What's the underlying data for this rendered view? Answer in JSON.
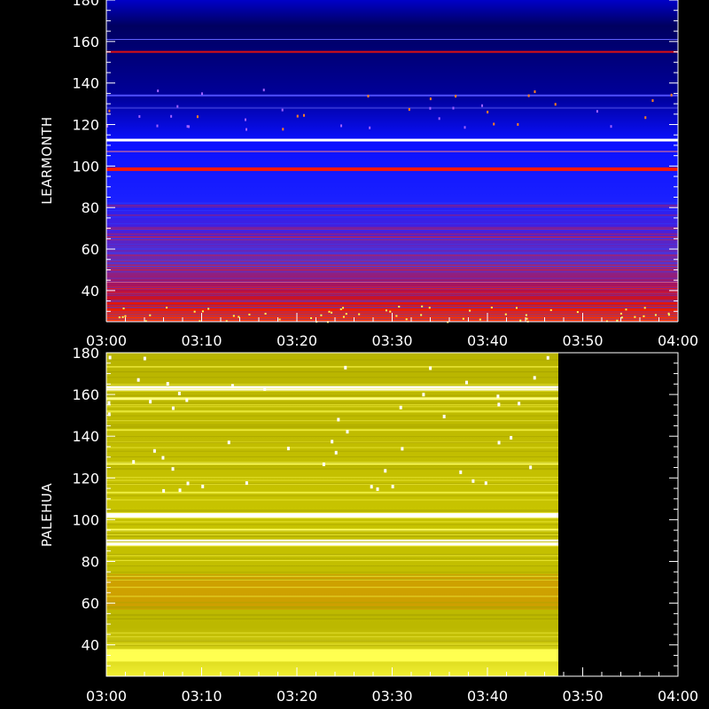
{
  "chart_data": [
    {
      "type": "heatmap",
      "station": "LEARMONTH",
      "ylabel": "LEARMONTH",
      "ylim": [
        25,
        180
      ],
      "yticks": [
        40,
        60,
        80,
        100,
        120,
        140,
        160,
        180
      ],
      "xlim": [
        "03:00",
        "04:00"
      ],
      "xticks": [
        "03:00",
        "03:10",
        "03:20",
        "03:30",
        "03:40",
        "03:50",
        "04:00"
      ],
      "data_until": "04:00",
      "colors": {
        "high": "#ff1a00",
        "mid": "#6a26c8",
        "low": "#0a1fff",
        "background": "#00008a"
      }
    },
    {
      "type": "heatmap",
      "station": "PALEHUA",
      "ylabel": "PALEHUA",
      "ylim": [
        25,
        180
      ],
      "yticks": [
        40,
        60,
        80,
        100,
        120,
        140,
        160,
        180
      ],
      "xlim": [
        "03:00",
        "04:00"
      ],
      "xticks": [
        "03:00",
        "03:10",
        "03:20",
        "03:30",
        "03:40",
        "03:50",
        "04:00"
      ],
      "data_until": "03:48",
      "colors": {
        "base": "#c8c400",
        "bright": "#ffff40",
        "hot": "#e08a00",
        "background": "#000000"
      }
    }
  ]
}
